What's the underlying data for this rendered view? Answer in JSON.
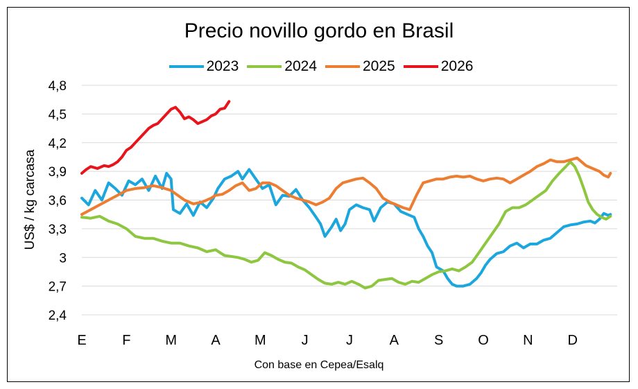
{
  "chart_data": {
    "type": "line",
    "title": "Precio novillo gordo en Brasil",
    "ylabel": "US$ / kg carcasa",
    "xlabel": "",
    "source_note": "Con base en Cepea/Esalq",
    "ylim": [
      2.4,
      4.8
    ],
    "yticks": [
      "2,4",
      "2,7",
      "3",
      "3,3",
      "3,6",
      "3,9",
      "4,2",
      "4,5",
      "4,8"
    ],
    "ytick_values": [
      2.4,
      2.7,
      3.0,
      3.3,
      3.6,
      3.9,
      4.2,
      4.5,
      4.8
    ],
    "x_unit": "month (0 = start of January, 12 = end of December)",
    "xlim": [
      0,
      12
    ],
    "month_labels": [
      "E",
      "F",
      "M",
      "A",
      "M",
      "J",
      "J",
      "A",
      "S",
      "O",
      "N",
      "D"
    ],
    "grid": "horizontal",
    "legend_position": "top",
    "series": [
      {
        "name": "2023",
        "color": "#1ba6de",
        "points": [
          [
            0.0,
            3.62
          ],
          [
            0.15,
            3.55
          ],
          [
            0.3,
            3.7
          ],
          [
            0.45,
            3.6
          ],
          [
            0.6,
            3.78
          ],
          [
            0.75,
            3.72
          ],
          [
            0.9,
            3.65
          ],
          [
            1.05,
            3.8
          ],
          [
            1.2,
            3.76
          ],
          [
            1.35,
            3.82
          ],
          [
            1.5,
            3.7
          ],
          [
            1.65,
            3.85
          ],
          [
            1.8,
            3.72
          ],
          [
            1.9,
            3.88
          ],
          [
            2.0,
            3.82
          ],
          [
            2.05,
            3.5
          ],
          [
            2.2,
            3.46
          ],
          [
            2.35,
            3.56
          ],
          [
            2.5,
            3.44
          ],
          [
            2.65,
            3.58
          ],
          [
            2.8,
            3.52
          ],
          [
            2.95,
            3.62
          ],
          [
            3.05,
            3.72
          ],
          [
            3.2,
            3.82
          ],
          [
            3.35,
            3.85
          ],
          [
            3.5,
            3.9
          ],
          [
            3.6,
            3.82
          ],
          [
            3.75,
            3.92
          ],
          [
            3.9,
            3.82
          ],
          [
            4.05,
            3.72
          ],
          [
            4.2,
            3.76
          ],
          [
            4.35,
            3.55
          ],
          [
            4.5,
            3.65
          ],
          [
            4.65,
            3.64
          ],
          [
            4.8,
            3.71
          ],
          [
            4.95,
            3.6
          ],
          [
            5.1,
            3.52
          ],
          [
            5.25,
            3.42
          ],
          [
            5.35,
            3.35
          ],
          [
            5.45,
            3.22
          ],
          [
            5.6,
            3.32
          ],
          [
            5.7,
            3.4
          ],
          [
            5.8,
            3.28
          ],
          [
            5.9,
            3.35
          ],
          [
            6.0,
            3.5
          ],
          [
            6.15,
            3.55
          ],
          [
            6.3,
            3.52
          ],
          [
            6.45,
            3.5
          ],
          [
            6.55,
            3.38
          ],
          [
            6.7,
            3.52
          ],
          [
            6.85,
            3.58
          ],
          [
            7.0,
            3.56
          ],
          [
            7.15,
            3.48
          ],
          [
            7.3,
            3.45
          ],
          [
            7.45,
            3.42
          ],
          [
            7.55,
            3.3
          ],
          [
            7.65,
            3.22
          ],
          [
            7.75,
            3.12
          ],
          [
            7.85,
            3.05
          ],
          [
            7.95,
            2.9
          ],
          [
            8.1,
            2.86
          ],
          [
            8.2,
            2.78
          ],
          [
            8.3,
            2.72
          ],
          [
            8.4,
            2.7
          ],
          [
            8.55,
            2.7
          ],
          [
            8.7,
            2.72
          ],
          [
            8.85,
            2.78
          ],
          [
            8.95,
            2.84
          ],
          [
            9.05,
            2.92
          ],
          [
            9.15,
            2.98
          ],
          [
            9.3,
            3.04
          ],
          [
            9.45,
            3.06
          ],
          [
            9.6,
            3.12
          ],
          [
            9.75,
            3.15
          ],
          [
            9.9,
            3.1
          ],
          [
            10.05,
            3.14
          ],
          [
            10.2,
            3.14
          ],
          [
            10.35,
            3.18
          ],
          [
            10.5,
            3.2
          ],
          [
            10.65,
            3.26
          ],
          [
            10.8,
            3.32
          ],
          [
            10.95,
            3.34
          ],
          [
            11.1,
            3.35
          ],
          [
            11.25,
            3.37
          ],
          [
            11.4,
            3.38
          ],
          [
            11.5,
            3.36
          ],
          [
            11.6,
            3.4
          ],
          [
            11.7,
            3.46
          ],
          [
            11.8,
            3.44
          ],
          [
            11.85,
            3.45
          ]
        ]
      },
      {
        "name": "2024",
        "color": "#8dc63f",
        "points": [
          [
            0.0,
            3.42
          ],
          [
            0.2,
            3.41
          ],
          [
            0.4,
            3.43
          ],
          [
            0.6,
            3.38
          ],
          [
            0.8,
            3.35
          ],
          [
            1.0,
            3.3
          ],
          [
            1.2,
            3.22
          ],
          [
            1.4,
            3.2
          ],
          [
            1.6,
            3.2
          ],
          [
            1.8,
            3.17
          ],
          [
            2.0,
            3.15
          ],
          [
            2.2,
            3.15
          ],
          [
            2.4,
            3.12
          ],
          [
            2.6,
            3.1
          ],
          [
            2.8,
            3.06
          ],
          [
            3.0,
            3.08
          ],
          [
            3.1,
            3.05
          ],
          [
            3.2,
            3.02
          ],
          [
            3.35,
            3.01
          ],
          [
            3.5,
            3.0
          ],
          [
            3.65,
            2.98
          ],
          [
            3.8,
            2.95
          ],
          [
            3.95,
            2.97
          ],
          [
            4.1,
            3.05
          ],
          [
            4.25,
            3.02
          ],
          [
            4.4,
            2.98
          ],
          [
            4.55,
            2.95
          ],
          [
            4.7,
            2.94
          ],
          [
            4.85,
            2.9
          ],
          [
            5.0,
            2.87
          ],
          [
            5.15,
            2.82
          ],
          [
            5.3,
            2.77
          ],
          [
            5.45,
            2.73
          ],
          [
            5.6,
            2.72
          ],
          [
            5.75,
            2.74
          ],
          [
            5.9,
            2.72
          ],
          [
            6.05,
            2.75
          ],
          [
            6.2,
            2.72
          ],
          [
            6.35,
            2.68
          ],
          [
            6.5,
            2.7
          ],
          [
            6.65,
            2.76
          ],
          [
            6.8,
            2.77
          ],
          [
            6.95,
            2.78
          ],
          [
            7.1,
            2.74
          ],
          [
            7.25,
            2.72
          ],
          [
            7.4,
            2.75
          ],
          [
            7.55,
            2.74
          ],
          [
            7.7,
            2.78
          ],
          [
            7.85,
            2.82
          ],
          [
            8.0,
            2.85
          ],
          [
            8.15,
            2.86
          ],
          [
            8.3,
            2.88
          ],
          [
            8.45,
            2.86
          ],
          [
            8.6,
            2.9
          ],
          [
            8.75,
            2.95
          ],
          [
            8.9,
            3.05
          ],
          [
            9.05,
            3.15
          ],
          [
            9.2,
            3.25
          ],
          [
            9.35,
            3.35
          ],
          [
            9.5,
            3.48
          ],
          [
            9.65,
            3.52
          ],
          [
            9.8,
            3.52
          ],
          [
            9.95,
            3.55
          ],
          [
            10.1,
            3.6
          ],
          [
            10.25,
            3.65
          ],
          [
            10.4,
            3.7
          ],
          [
            10.55,
            3.8
          ],
          [
            10.7,
            3.88
          ],
          [
            10.85,
            3.95
          ],
          [
            10.95,
            4.0
          ],
          [
            11.05,
            3.95
          ],
          [
            11.15,
            3.85
          ],
          [
            11.25,
            3.72
          ],
          [
            11.35,
            3.58
          ],
          [
            11.45,
            3.5
          ],
          [
            11.55,
            3.45
          ],
          [
            11.65,
            3.42
          ],
          [
            11.75,
            3.4
          ],
          [
            11.85,
            3.43
          ]
        ]
      },
      {
        "name": "2025",
        "color": "#ed7d31",
        "points": [
          [
            0.0,
            3.45
          ],
          [
            0.2,
            3.5
          ],
          [
            0.4,
            3.55
          ],
          [
            0.6,
            3.6
          ],
          [
            0.8,
            3.65
          ],
          [
            1.0,
            3.7
          ],
          [
            1.2,
            3.72
          ],
          [
            1.4,
            3.73
          ],
          [
            1.6,
            3.75
          ],
          [
            1.8,
            3.73
          ],
          [
            2.0,
            3.7
          ],
          [
            2.15,
            3.65
          ],
          [
            2.3,
            3.6
          ],
          [
            2.5,
            3.56
          ],
          [
            2.7,
            3.58
          ],
          [
            2.9,
            3.62
          ],
          [
            3.0,
            3.65
          ],
          [
            3.15,
            3.66
          ],
          [
            3.3,
            3.7
          ],
          [
            3.45,
            3.75
          ],
          [
            3.6,
            3.78
          ],
          [
            3.75,
            3.7
          ],
          [
            3.9,
            3.72
          ],
          [
            4.05,
            3.78
          ],
          [
            4.2,
            3.78
          ],
          [
            4.35,
            3.75
          ],
          [
            4.5,
            3.7
          ],
          [
            4.65,
            3.65
          ],
          [
            4.8,
            3.62
          ],
          [
            4.95,
            3.6
          ],
          [
            5.1,
            3.58
          ],
          [
            5.25,
            3.55
          ],
          [
            5.4,
            3.58
          ],
          [
            5.55,
            3.62
          ],
          [
            5.7,
            3.72
          ],
          [
            5.85,
            3.78
          ],
          [
            6.0,
            3.8
          ],
          [
            6.15,
            3.82
          ],
          [
            6.3,
            3.83
          ],
          [
            6.45,
            3.78
          ],
          [
            6.6,
            3.72
          ],
          [
            6.75,
            3.62
          ],
          [
            6.9,
            3.58
          ],
          [
            7.05,
            3.55
          ],
          [
            7.2,
            3.52
          ],
          [
            7.35,
            3.5
          ],
          [
            7.5,
            3.65
          ],
          [
            7.65,
            3.78
          ],
          [
            7.8,
            3.8
          ],
          [
            7.95,
            3.82
          ],
          [
            8.1,
            3.82
          ],
          [
            8.25,
            3.84
          ],
          [
            8.4,
            3.85
          ],
          [
            8.55,
            3.84
          ],
          [
            8.7,
            3.85
          ],
          [
            8.85,
            3.82
          ],
          [
            9.0,
            3.8
          ],
          [
            9.15,
            3.82
          ],
          [
            9.3,
            3.83
          ],
          [
            9.45,
            3.82
          ],
          [
            9.6,
            3.78
          ],
          [
            9.75,
            3.82
          ],
          [
            9.9,
            3.86
          ],
          [
            10.05,
            3.9
          ],
          [
            10.2,
            3.95
          ],
          [
            10.35,
            3.98
          ],
          [
            10.5,
            4.02
          ],
          [
            10.65,
            4.0
          ],
          [
            10.8,
            4.0
          ],
          [
            10.95,
            4.02
          ],
          [
            11.1,
            4.04
          ],
          [
            11.2,
            4.0
          ],
          [
            11.3,
            3.96
          ],
          [
            11.45,
            3.93
          ],
          [
            11.6,
            3.9
          ],
          [
            11.7,
            3.86
          ],
          [
            11.8,
            3.84
          ],
          [
            11.85,
            3.88
          ]
        ]
      },
      {
        "name": "2026",
        "color": "#e8141c",
        "points": [
          [
            0.0,
            3.88
          ],
          [
            0.1,
            3.92
          ],
          [
            0.2,
            3.95
          ],
          [
            0.35,
            3.93
          ],
          [
            0.5,
            3.96
          ],
          [
            0.6,
            3.95
          ],
          [
            0.7,
            3.97
          ],
          [
            0.8,
            4.0
          ],
          [
            0.9,
            4.05
          ],
          [
            1.0,
            4.12
          ],
          [
            1.1,
            4.15
          ],
          [
            1.2,
            4.2
          ],
          [
            1.3,
            4.25
          ],
          [
            1.4,
            4.3
          ],
          [
            1.5,
            4.35
          ],
          [
            1.6,
            4.38
          ],
          [
            1.7,
            4.4
          ],
          [
            1.8,
            4.45
          ],
          [
            1.9,
            4.5
          ],
          [
            2.0,
            4.55
          ],
          [
            2.1,
            4.57
          ],
          [
            2.2,
            4.52
          ],
          [
            2.3,
            4.45
          ],
          [
            2.4,
            4.47
          ],
          [
            2.5,
            4.44
          ],
          [
            2.6,
            4.4
          ],
          [
            2.7,
            4.42
          ],
          [
            2.8,
            4.44
          ],
          [
            2.9,
            4.48
          ],
          [
            3.0,
            4.5
          ],
          [
            3.1,
            4.55
          ],
          [
            3.2,
            4.56
          ],
          [
            3.3,
            4.63
          ]
        ]
      }
    ]
  }
}
